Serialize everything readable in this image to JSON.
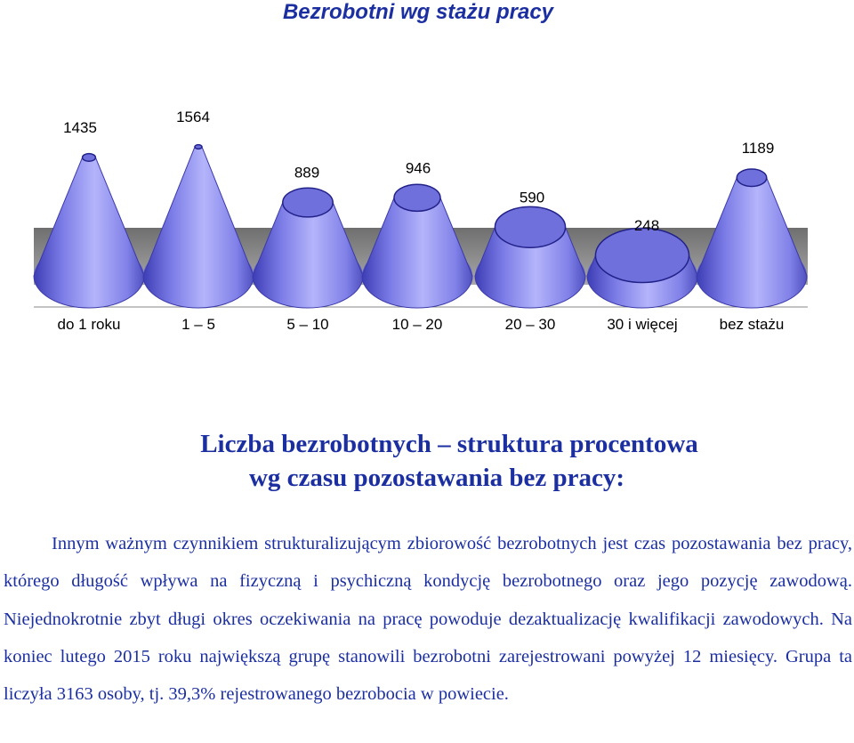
{
  "chart_data": {
    "type": "bar",
    "title": "Bezrobotni  wg  stażu  pracy",
    "categories": [
      "do 1 roku",
      "1 – 5",
      "5 – 10",
      "10 – 20",
      "20 – 30",
      "30 i więcej",
      "bez stażu"
    ],
    "values": [
      1435,
      1564,
      889,
      946,
      590,
      248,
      1189
    ],
    "value_labels": [
      "1435",
      "1564",
      "889",
      "946",
      "590",
      "248",
      "1189"
    ],
    "bar_shape": "cone (truncated)",
    "grid": false,
    "legend": "none",
    "colors": {
      "cone": "#8c8cf0",
      "cone_dark": "#5a5ac8",
      "floor": "#8a8a8a"
    }
  },
  "heading": {
    "line1": "Liczba bezrobotnych – struktura procentowa",
    "line2": "wg czasu pozostawania bez pracy:"
  },
  "paragraph": "Innym ważnym czynnikiem strukturalizującym zbiorowość bezrobotnych jest czas pozostawania bez pracy, którego długość wpływa na fizyczną i psychiczną kondycję bezrobotnego oraz jego pozycję zawodową. Niejednokrotnie zbyt długi okres oczekiwania na pracę powoduje dezaktualizację kwalifikacji zawodowych. Na koniec lutego 2015 roku największą grupę stanowili bezrobotni zarejestrowani powyżej 12 miesięcy. Grupa ta liczyła 3163 osoby, tj. 39,3% rejestrowanego bezrobocia w powiecie."
}
